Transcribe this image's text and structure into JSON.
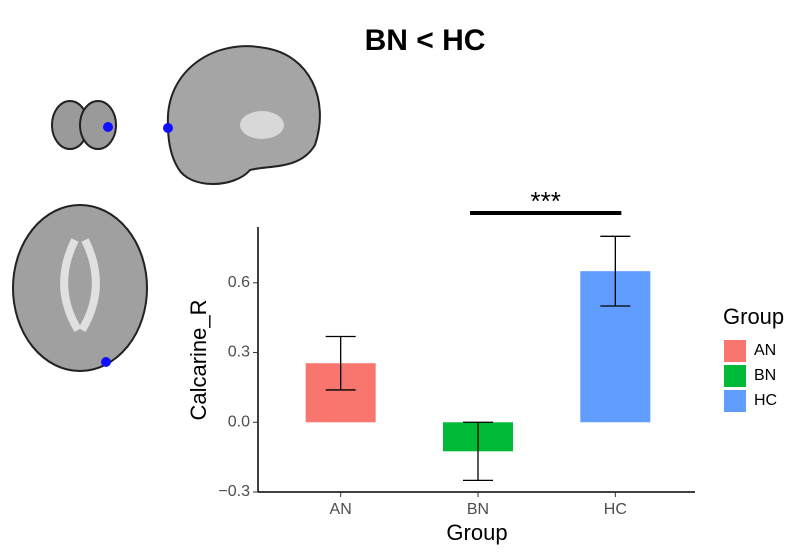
{
  "chart_data": {
    "type": "bar",
    "title": "BN < HC",
    "x_label": "Group",
    "y_label": "Calcarine_R",
    "categories": [
      "AN",
      "BN",
      "HC"
    ],
    "series": [
      {
        "name": "Group",
        "colors": [
          "#F8766D",
          "#00BA38",
          "#619CFF"
        ],
        "values": [
          0.254,
          -0.125,
          0.65
        ],
        "errors": [
          0.115,
          0.125,
          0.15
        ]
      }
    ],
    "legend_title": "Group",
    "legend": "right",
    "ylim": [
      -0.3,
      0.84
    ],
    "yticks": [
      {
        "value": -0.3,
        "label": "−0.3"
      },
      {
        "value": 0,
        "label": "0.0"
      },
      0.3,
      0.6
    ],
    "annotation": "***"
  }
}
